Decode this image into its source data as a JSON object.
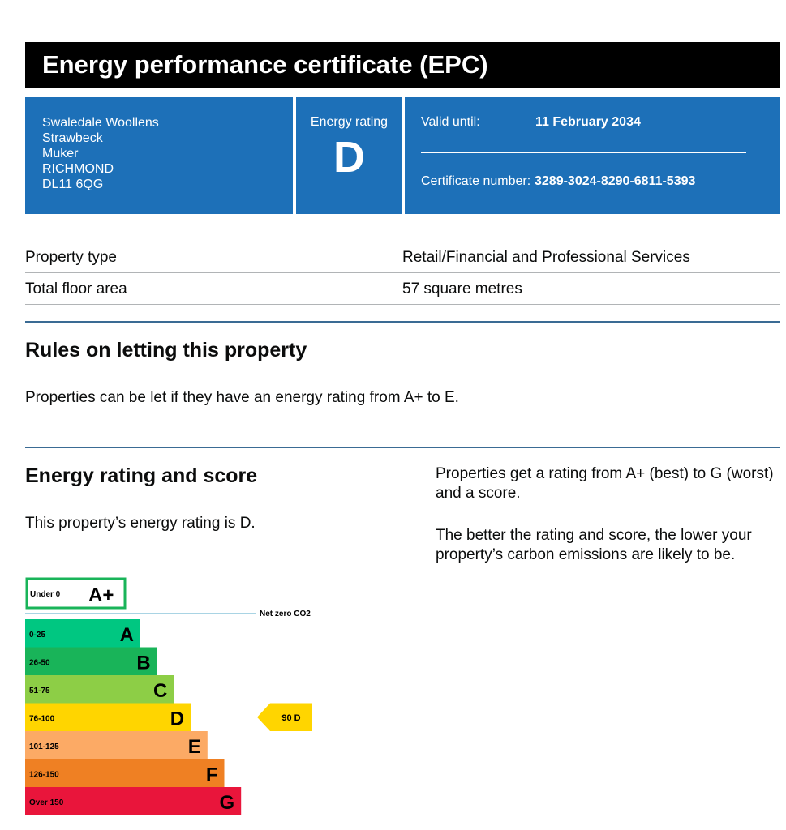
{
  "header": {
    "title": "Energy performance certificate (EPC)"
  },
  "address": {
    "lines": [
      "Swaledale Woollens",
      "Strawbeck",
      "Muker",
      "RICHMOND",
      "DL11 6QG"
    ]
  },
  "energy_rating": {
    "label": "Energy rating",
    "value": "D"
  },
  "certificate": {
    "valid_label": "Valid until:",
    "valid_value": "11 February 2034",
    "number_label": "Certificate number:",
    "number_value": "3289-3024-8290-6811-5393"
  },
  "property": {
    "rows": [
      {
        "key": "Property type",
        "value": "Retail/Financial and Professional Services"
      },
      {
        "key": "Total floor area",
        "value": "57 square metres"
      }
    ]
  },
  "rules": {
    "heading": "Rules on letting this property",
    "text": "Properties can be let if they have an energy rating from A+ to E."
  },
  "score_section": {
    "heading": "Energy rating and score",
    "text": "This property’s energy rating is D.",
    "side_text_1": "Properties get a rating from A+ (best) to G (worst) and a score.",
    "side_text_2": "The better the rating and score, the lower your property’s carbon emissions are likely to be."
  },
  "chart_data": {
    "type": "bar",
    "bands": [
      {
        "letter": "A+",
        "range": "Under 0",
        "color": "#ffffff",
        "border": "#19b459"
      },
      {
        "letter": "A",
        "range": "0-25",
        "color": "#00c781"
      },
      {
        "letter": "B",
        "range": "26-50",
        "color": "#19b459"
      },
      {
        "letter": "C",
        "range": "51-75",
        "color": "#8dce46"
      },
      {
        "letter": "D",
        "range": "76-100",
        "color": "#ffd500"
      },
      {
        "letter": "E",
        "range": "101-125",
        "color": "#fcaa65"
      },
      {
        "letter": "F",
        "range": "126-150",
        "color": "#ef8023"
      },
      {
        "letter": "G",
        "range": "Over 150",
        "color": "#e9153b"
      }
    ],
    "net_zero_label": "Net zero CO2",
    "current": {
      "score": 90,
      "rating": "D",
      "label": "90 D",
      "color": "#ffd500"
    }
  }
}
